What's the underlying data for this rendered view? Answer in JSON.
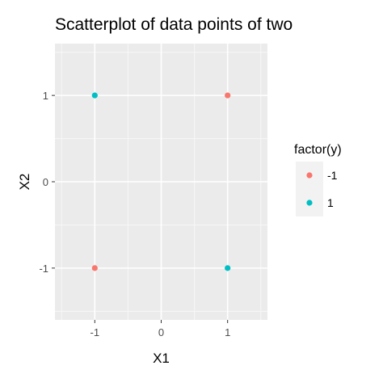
{
  "chart_data": {
    "type": "scatter",
    "title": "Scatterplot of data points of two",
    "xlabel": "X1",
    "ylabel": "X2",
    "xlim": [
      -1.6,
      1.6
    ],
    "ylim": [
      -1.6,
      1.6
    ],
    "x_ticks": [
      -1,
      0,
      1
    ],
    "y_ticks": [
      -1,
      0,
      1
    ],
    "x_tick_labels": [
      "-1",
      "0",
      "1"
    ],
    "y_tick_labels": [
      "-1",
      "0",
      "1"
    ],
    "grid": true,
    "legend_position": "right",
    "legend": {
      "title": "factor(y)",
      "entries": [
        {
          "label": "-1",
          "color": "#f8766d"
        },
        {
          "label": "1",
          "color": "#00bfc4"
        }
      ]
    },
    "series": [
      {
        "name": "-1",
        "color": "#f8766d",
        "points": [
          {
            "x": 1,
            "y": 1
          },
          {
            "x": -1,
            "y": -1
          }
        ]
      },
      {
        "name": "1",
        "color": "#00bfc4",
        "points": [
          {
            "x": -1,
            "y": 1
          },
          {
            "x": 1,
            "y": -1
          }
        ]
      }
    ]
  },
  "colors": {
    "panel_background": "#ebebeb",
    "grid_major": "#ffffff",
    "legend_key_background": "#f2f2f2"
  }
}
